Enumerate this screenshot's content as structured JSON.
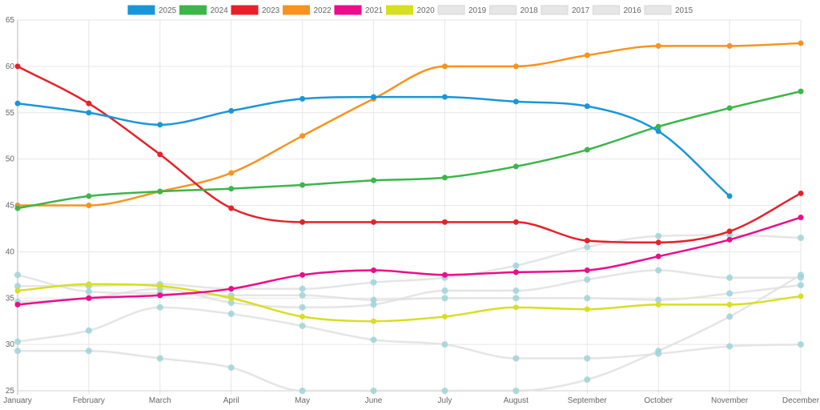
{
  "chart_data": {
    "type": "line",
    "title": "",
    "xlabel": "",
    "ylabel": "",
    "ylim": [
      25,
      65
    ],
    "yticks": [
      "25",
      "30",
      "35",
      "40",
      "45",
      "50",
      "55",
      "60",
      "65"
    ],
    "ytick_values": [
      25,
      30,
      35,
      40,
      45,
      50,
      55,
      60,
      65
    ],
    "grid": true,
    "legend_position": "top-center",
    "categories": [
      "January",
      "February",
      "March",
      "April",
      "May",
      "June",
      "July",
      "August",
      "September",
      "October",
      "November",
      "December"
    ],
    "series": [
      {
        "name": "2025",
        "color": "#1a96d8",
        "hidden": false,
        "values": [
          56,
          55,
          53.7,
          55.2,
          56.5,
          56.7,
          56.7,
          56.2,
          55.7,
          53,
          46,
          null
        ]
      },
      {
        "name": "2024",
        "color": "#3cb54a",
        "hidden": false,
        "values": [
          44.7,
          46,
          46.5,
          46.8,
          47.2,
          47.7,
          48,
          49.2,
          51,
          53.5,
          55.5,
          57.3
        ]
      },
      {
        "name": "2023",
        "color": "#e8202a",
        "hidden": false,
        "values": [
          60,
          56,
          50.5,
          44.7,
          43.2,
          43.2,
          43.2,
          43.2,
          41.2,
          41,
          42.2,
          46.3
        ]
      },
      {
        "name": "2022",
        "color": "#f7931e",
        "hidden": false,
        "values": [
          45,
          45,
          46.5,
          48.5,
          52.5,
          56.5,
          60,
          60,
          61.2,
          62.2,
          62.2,
          62.5
        ]
      },
      {
        "name": "2021",
        "color": "#ec0c8c",
        "hidden": false,
        "values": [
          34.3,
          35,
          35.3,
          36,
          37.5,
          38,
          37.5,
          37.8,
          38,
          39.5,
          41.3,
          43.7
        ]
      },
      {
        "name": "2020",
        "color": "#d7df21",
        "hidden": false,
        "values": [
          35.8,
          36.5,
          36.3,
          35,
          33,
          32.5,
          33,
          34,
          33.8,
          34.3,
          34.3,
          35.2
        ]
      },
      {
        "name": "2019",
        "color": "#e0e0e0",
        "hidden": true,
        "values": [
          37.5,
          35.7,
          35.5,
          35.3,
          35.3,
          34.8,
          35,
          35,
          35,
          34.8,
          35.5,
          36.4
        ]
      },
      {
        "name": "2018",
        "color": "#e0e0e0",
        "hidden": true,
        "values": [
          36.3,
          36.3,
          36.5,
          36,
          36,
          36.7,
          37.2,
          38.5,
          40.5,
          41.7,
          41.8,
          41.5
        ]
      },
      {
        "name": "2017",
        "color": "#e0e0e0",
        "hidden": true,
        "values": [
          34.6,
          35,
          36,
          34.5,
          34,
          34.3,
          35.8,
          35.8,
          37,
          38,
          37.2,
          37.2
        ]
      },
      {
        "name": "2016",
        "color": "#e0e0e0",
        "hidden": true,
        "values": [
          30.3,
          31.5,
          34,
          33.3,
          32,
          30.5,
          30,
          28.5,
          28.5,
          29,
          29.8,
          30
        ]
      },
      {
        "name": "2015",
        "color": "#e0e0e0",
        "hidden": true,
        "values": [
          29.3,
          29.3,
          28.5,
          27.5,
          25,
          25,
          25,
          25,
          26.2,
          29.3,
          33,
          37.5
        ]
      }
    ],
    "hidden_point_color": "#9fd4d8",
    "grid_color": "#e6e6e6",
    "axis_color": "#d0d0d0"
  }
}
